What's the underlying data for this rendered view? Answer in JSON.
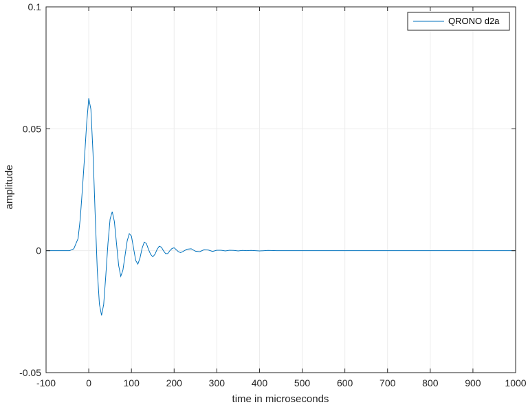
{
  "chart_data": {
    "type": "line",
    "title": "",
    "xlabel": "time in microseconds",
    "ylabel": "amplitude",
    "xlim": [
      -100,
      1000
    ],
    "ylim": [
      -0.05,
      0.1
    ],
    "x_ticks": [
      -100,
      0,
      100,
      200,
      300,
      400,
      500,
      600,
      700,
      800,
      900,
      1000
    ],
    "x_tick_labels": [
      "-100",
      "0",
      "100",
      "200",
      "300",
      "400",
      "500",
      "600",
      "700",
      "800",
      "900",
      "1000"
    ],
    "y_ticks": [
      -0.05,
      0,
      0.05,
      0.1
    ],
    "y_tick_labels": [
      "-0.05",
      "0",
      "0.05",
      "0.1"
    ],
    "grid": true,
    "legend_position": "top-right",
    "line_color": "#0072BD",
    "series": [
      {
        "name": "QRONO d2a",
        "x": [
          -100,
          -45,
          -35,
          -25,
          -20,
          -15,
          -10,
          -5,
          0,
          5,
          10,
          15,
          20,
          25,
          30,
          35,
          40,
          45,
          50,
          55,
          60,
          65,
          70,
          75,
          80,
          85,
          90,
          95,
          100,
          105,
          110,
          115,
          120,
          125,
          130,
          135,
          140,
          145,
          150,
          155,
          160,
          165,
          170,
          175,
          180,
          185,
          190,
          195,
          200,
          205,
          210,
          215,
          220,
          230,
          240,
          250,
          260,
          270,
          280,
          290,
          300,
          310,
          320,
          330,
          340,
          350,
          360,
          370,
          380,
          390,
          400,
          420,
          440,
          460,
          480,
          500,
          1000
        ],
        "y": [
          0,
          0,
          0.0008,
          0.005,
          0.013,
          0.025,
          0.038,
          0.052,
          0.0625,
          0.058,
          0.04,
          0.015,
          -0.008,
          -0.022,
          -0.0265,
          -0.022,
          -0.01,
          0.003,
          0.013,
          0.016,
          0.012,
          0.003,
          -0.006,
          -0.0105,
          -0.008,
          -0.002,
          0.004,
          0.007,
          0.006,
          0.001,
          -0.004,
          -0.0055,
          -0.003,
          0.001,
          0.0035,
          0.003,
          0.0005,
          -0.0015,
          -0.0025,
          -0.0015,
          0.0005,
          0.0018,
          0.0015,
          0.0,
          -0.0012,
          -0.0012,
          0.0,
          0.0009,
          0.0012,
          0.0004,
          -0.0004,
          -0.0008,
          -0.0004,
          0.0006,
          0.0008,
          -0.0002,
          -0.0004,
          0.0004,
          0.0003,
          -0.0003,
          0.0002,
          0.0002,
          -0.0001,
          0.0002,
          0.0001,
          -0.0001,
          0.0001,
          0,
          0.0001,
          0,
          -0.0001,
          0.0001,
          0,
          0,
          0,
          0,
          0
        ]
      }
    ]
  }
}
